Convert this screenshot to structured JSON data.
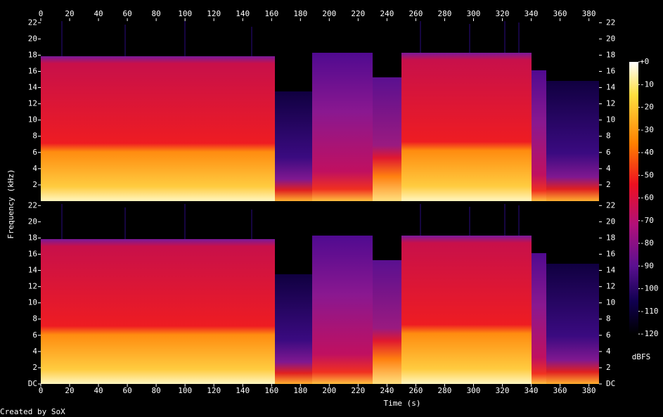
{
  "chart_data": {
    "type": "spectrogram",
    "xlabel": "Time (s)",
    "ylabel": "Frequency (kHz)",
    "credit": "Created by SoX",
    "xlim": [
      0,
      387
    ],
    "xticks": [
      0,
      20,
      40,
      60,
      80,
      100,
      120,
      140,
      160,
      180,
      200,
      220,
      240,
      260,
      280,
      300,
      320,
      340,
      360,
      380
    ],
    "panels": [
      {
        "ylim": [
          0,
          22.2
        ],
        "yticks": [
          2,
          4,
          6,
          8,
          10,
          12,
          14,
          16,
          18,
          20,
          22
        ]
      },
      {
        "ylim": [
          0,
          22.2
        ],
        "yticks": [
          {
            "value": 0,
            "label": "DC"
          },
          2,
          4,
          6,
          8,
          10,
          12,
          14,
          16,
          18,
          20,
          22
        ]
      }
    ],
    "colorbar": {
      "label": "dBFS",
      "lim": [
        -120,
        0
      ],
      "ticks": [
        {
          "value": 0,
          "label": "+0"
        },
        -10,
        -20,
        -30,
        -40,
        -50,
        -60,
        -70,
        -80,
        -90,
        -100,
        -110,
        -120
      ]
    }
  }
}
